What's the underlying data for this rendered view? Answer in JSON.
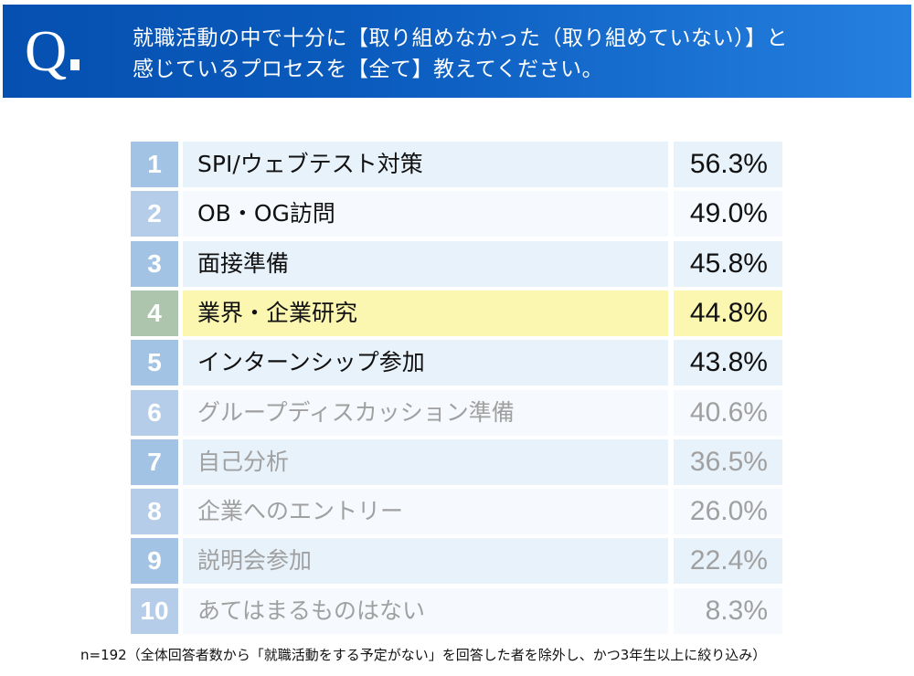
{
  "header": {
    "q_mark": "Q",
    "title_line1": "就職活動の中で十分に【取り組めなかった（取り組めていない）】と",
    "title_line2": "感じているプロセスを【全て】教えてください。"
  },
  "colors": {
    "header_blue": "#0550b0",
    "rank_odd": "#a3c3e5",
    "rank_even": "#b5cde8",
    "rank_highlight": "#adc5ad",
    "row_odd": "#e8f2fb",
    "row_even": "#f6f9fd",
    "row_highlight": "#fbf6b0",
    "muted_text": "#a0a0a0"
  },
  "chart_data": {
    "type": "table",
    "columns": [
      "rank",
      "item",
      "percent"
    ],
    "rows": [
      {
        "rank": "1",
        "item": "SPI/ウェブテスト対策",
        "value": "56.3%"
      },
      {
        "rank": "2",
        "item": "OB・OG訪問",
        "value": "49.0%"
      },
      {
        "rank": "3",
        "item": "面接準備",
        "value": "45.8%"
      },
      {
        "rank": "4",
        "item": "業界・企業研究",
        "value": "44.8%",
        "highlighted": true
      },
      {
        "rank": "5",
        "item": "インターンシップ参加",
        "value": "43.8%"
      },
      {
        "rank": "6",
        "item": "グループディスカッション準備",
        "value": "40.6%",
        "muted": true
      },
      {
        "rank": "7",
        "item": "自己分析",
        "value": "36.5%",
        "muted": true
      },
      {
        "rank": "8",
        "item": "企業へのエントリー",
        "value": "26.0%",
        "muted": true
      },
      {
        "rank": "9",
        "item": "説明会参加",
        "value": "22.4%",
        "muted": true
      },
      {
        "rank": "10",
        "item": "あてはまるものはない",
        "value": "8.3%",
        "muted": true
      }
    ]
  },
  "footnote": "n=192（全体回答者数から「就職活動をする予定がない」を回答した者を除外し、かつ3年生以上に絞り込み）"
}
